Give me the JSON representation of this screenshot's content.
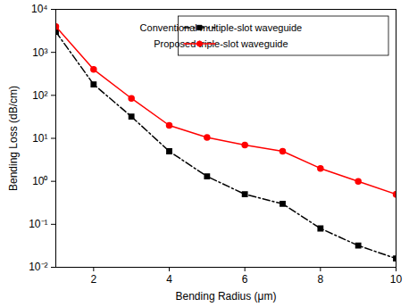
{
  "chart_data": {
    "type": "line",
    "x_label": "Bending Radius (μm)",
    "y_label": "Bending Loss (dB/cm)",
    "x": [
      1,
      2,
      3,
      4,
      5,
      6,
      7,
      8,
      9,
      10
    ],
    "series": [
      {
        "name": "Conventional multiple-slot waveguide",
        "color": "#000000",
        "marker": "square",
        "line_style": "dashdot",
        "values": [
          3000,
          180,
          32,
          5,
          1.3,
          0.5,
          0.3,
          0.08,
          0.032,
          0.016
        ]
      },
      {
        "name": "Proposed triple-slot waveguide",
        "color": "#ff0000",
        "marker": "circle",
        "line_style": "solid",
        "values": [
          4000,
          400,
          85,
          20,
          10.5,
          7,
          5,
          2,
          1,
          0.5
        ]
      }
    ],
    "xlim": [
      1,
      10
    ],
    "xticks": [
      2,
      4,
      6,
      8,
      10
    ],
    "ylim": [
      0.01,
      10000
    ],
    "yticks": [
      {
        "value": 0.01,
        "label": "10⁻²"
      },
      {
        "value": 0.1,
        "label": "10⁻¹"
      },
      {
        "value": 1,
        "label": "10⁰"
      },
      {
        "value": 10,
        "label": "10¹"
      },
      {
        "value": 100,
        "label": "10²"
      },
      {
        "value": 1000,
        "label": "10³"
      },
      {
        "value": 10000,
        "label": "10⁴"
      }
    ],
    "log": "y",
    "legend": "top-right"
  }
}
